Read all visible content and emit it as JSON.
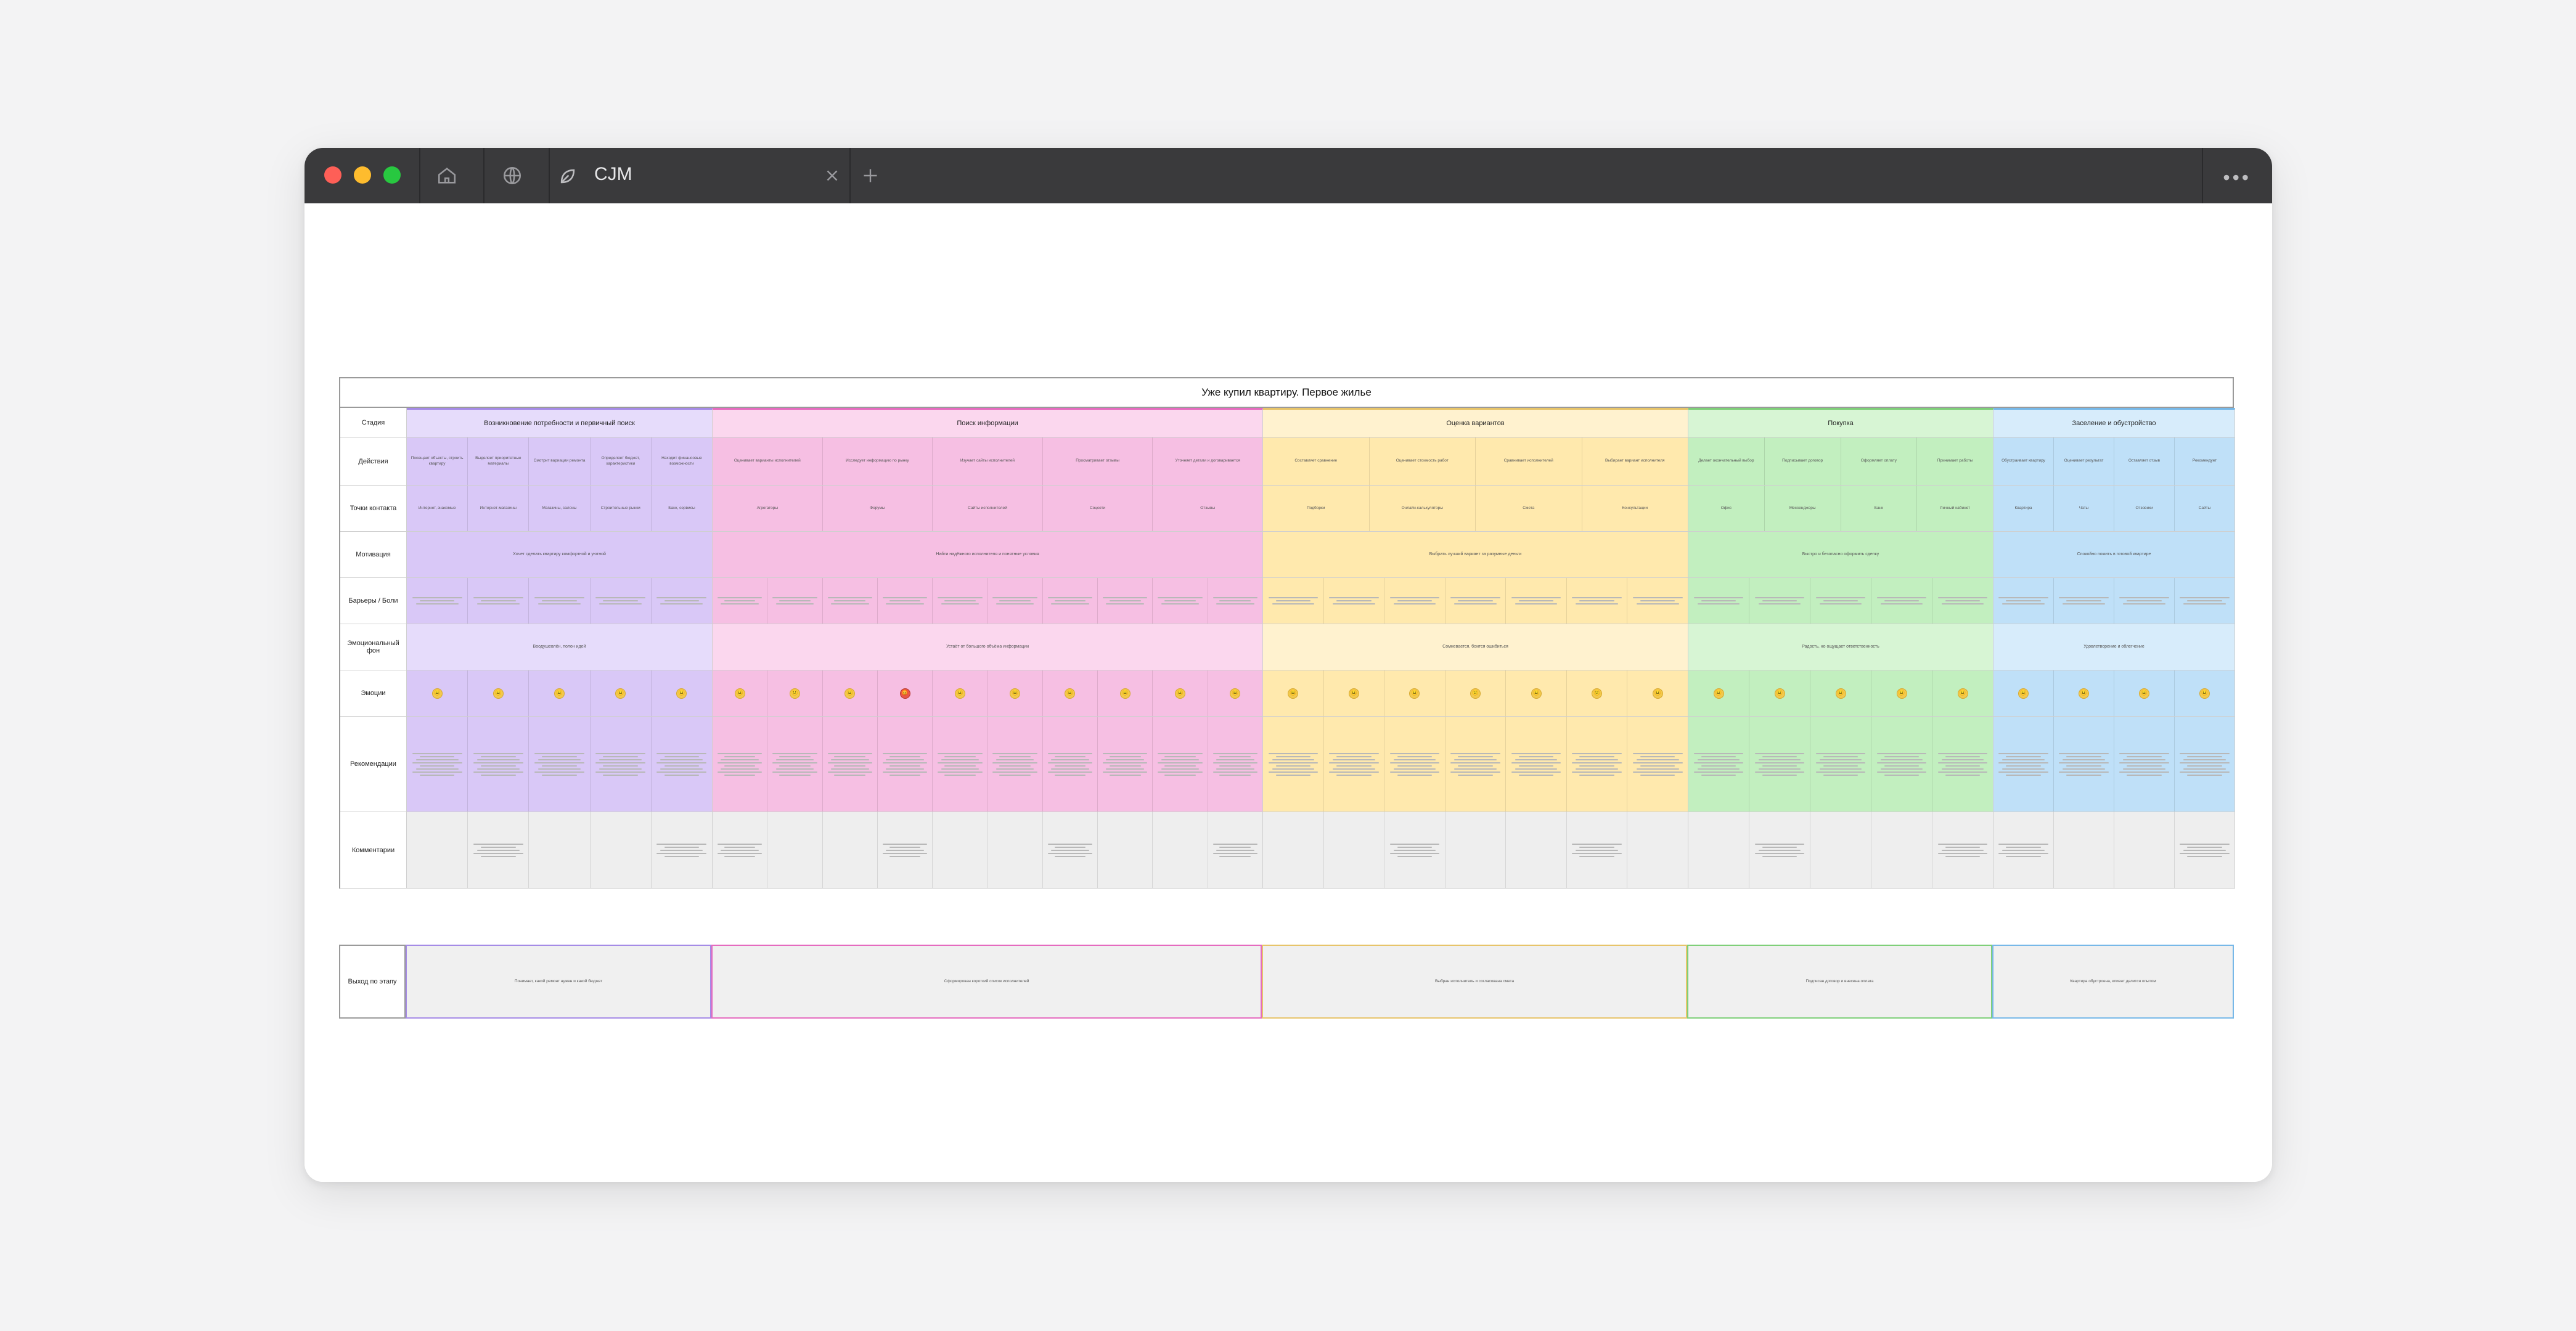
{
  "window": {
    "tab_title": "CJM"
  },
  "board": {
    "title": "Уже купил квартиру. Первое жилье",
    "row_labels": {
      "stage": "Стадия",
      "actions": "Действия",
      "touchpoints": "Точки контакта",
      "motivation": "Мотивация",
      "barriers": "Барьеры / Боли",
      "emotional_bg": "Эмоциональный фон",
      "emotions": "Эмоции",
      "recommendations": "Рекомендации",
      "comments": "Комментарии"
    },
    "stages": [
      {
        "name": "Возникновение потребности и первичный поиск"
      },
      {
        "name": "Поиск информации"
      },
      {
        "name": "Оценка вариантов"
      },
      {
        "name": "Покупка"
      },
      {
        "name": "Заселение и обустройство"
      }
    ],
    "actions": [
      [
        "Посещает объекты, строить квартиру",
        "Выделяет приоритетные материалы",
        "Смотрит вариации ремонта",
        "Определяет бюджет, характеристики",
        "Находит финансовые возможности"
      ],
      [
        "Оценивает варианты исполнителей",
        "Исследует информацию по рынку",
        "Изучает сайты исполнителей",
        "Просматривает отзывы",
        "Уточняет детали и договаривается"
      ],
      [
        "Составляет сравнение",
        "Оценивает стоимость работ",
        "Сравнивает исполнителей",
        "Выбирает вариант исполнителя"
      ],
      [
        "Делает окончательный выбор",
        "Подписывает договор",
        "Оформляет оплату",
        "Принимает работы"
      ],
      [
        "Обустраивает квартиру",
        "Оценивает результат",
        "Оставляет отзыв",
        "Рекомендует"
      ]
    ],
    "touchpoints": [
      [
        "Интернет, знакомые",
        "Интернет-магазины",
        "Магазины, салоны",
        "Строительные рынки",
        "Банк, сервисы"
      ],
      [
        "Агрегаторы",
        "Форумы",
        "Сайты исполнителей",
        "Соцсети",
        "Отзывы"
      ],
      [
        "Подборки",
        "Онлайн-калькуляторы",
        "Смета",
        "Консультации"
      ],
      [
        "Офис",
        "Мессенджеры",
        "Банк",
        "Личный кабинет"
      ],
      [
        "Квартира",
        "Чаты",
        "Отзовики",
        "Сайты"
      ]
    ],
    "motivation": [
      "Хочет сделать квартиру комфортной и уютной",
      "Найти надёжного исполнителя и понятные условия",
      "Выбрать лучший вариант за разумные деньги",
      "Быстро и безопасно оформить сделку",
      "Спокойно пожить в готовой квартире"
    ],
    "emotional_bg": [
      "Воодушевлён, полон идей",
      "Устаёт от большого объёма информации",
      "Сомневается, боится ошибиться",
      "Радость, но ощущает ответственность",
      "Удовлетворение и облегчение"
    ],
    "outputs": {
      "label": "Выход по этапу",
      "items": [
        "Понимает, какой ремонт нужен и какой бюджет",
        "Сформирован короткий список исполнителей",
        "Выбран исполнитель и согласована смета",
        "Подписан договор и внесена оплата",
        "Квартира обустроена, клиент делится опытом"
      ]
    }
  },
  "colors": {
    "stage1_bg": "#e6dcfb",
    "stage1_cell": "#d9c8f7",
    "stage1_border": "#a58be6",
    "stage2_bg": "#fbd7ee",
    "stage2_cell": "#f6bfe3",
    "stage2_border": "#e56bbf",
    "stage3_bg": "#fff2cf",
    "stage3_cell": "#ffe9ad",
    "stage3_border": "#e7c46a",
    "stage4_bg": "#d7f5d4",
    "stage4_cell": "#c2efbf",
    "stage4_border": "#7fcf79",
    "stage5_bg": "#d7ecfb",
    "stage5_cell": "#bfe0f8",
    "stage5_border": "#77b8e8"
  },
  "icons": [
    "home-icon",
    "globe-icon",
    "leaf-icon",
    "close-icon",
    "plus-icon",
    "more-icon",
    "emoji-face-icon"
  ]
}
